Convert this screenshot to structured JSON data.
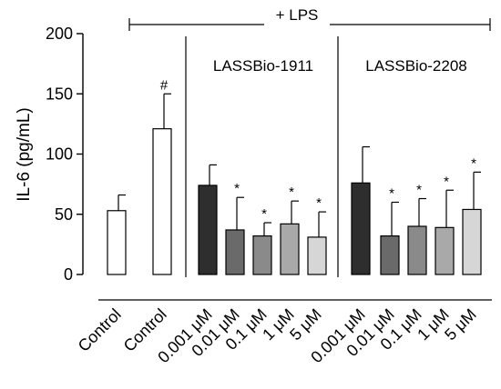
{
  "chart_data": {
    "type": "bar",
    "title": "",
    "ylabel": "IL-6 (pg/mL)",
    "xlabel": "",
    "ylim": [
      0,
      200
    ],
    "yticks": [
      0,
      50,
      100,
      150,
      200
    ],
    "grid": false,
    "legend": "none",
    "lps_label": "+ LPS",
    "groups": [
      {
        "name": "LASSBio-1911"
      },
      {
        "name": "LASSBio-2208"
      }
    ],
    "categories": [
      "Control",
      "Control",
      "0.001 μM",
      "0.01 μM",
      "0.1 μM",
      "1 μM",
      "5 μM",
      "0.001 μM",
      "0.01 μM",
      "0.1 μM",
      "1 μM",
      "5 μM"
    ],
    "values": [
      53,
      121,
      74,
      37,
      32,
      42,
      31,
      76,
      32,
      40,
      39,
      54
    ],
    "errors": [
      13,
      29,
      17,
      27,
      11,
      19,
      21,
      30,
      28,
      23,
      31,
      31
    ],
    "annotations": [
      "",
      "#",
      "",
      "*",
      "*",
      "*",
      "*",
      "",
      "*",
      "*",
      "*",
      "*"
    ],
    "colors": [
      "#ffffff",
      "#ffffff",
      "#2e2e2e",
      "#6a6a6a",
      "#8a8a8a",
      "#a9a9a9",
      "#d6d6d6",
      "#2e2e2e",
      "#6a6a6a",
      "#8a8a8a",
      "#a9a9a9",
      "#d6d6d6"
    ]
  }
}
